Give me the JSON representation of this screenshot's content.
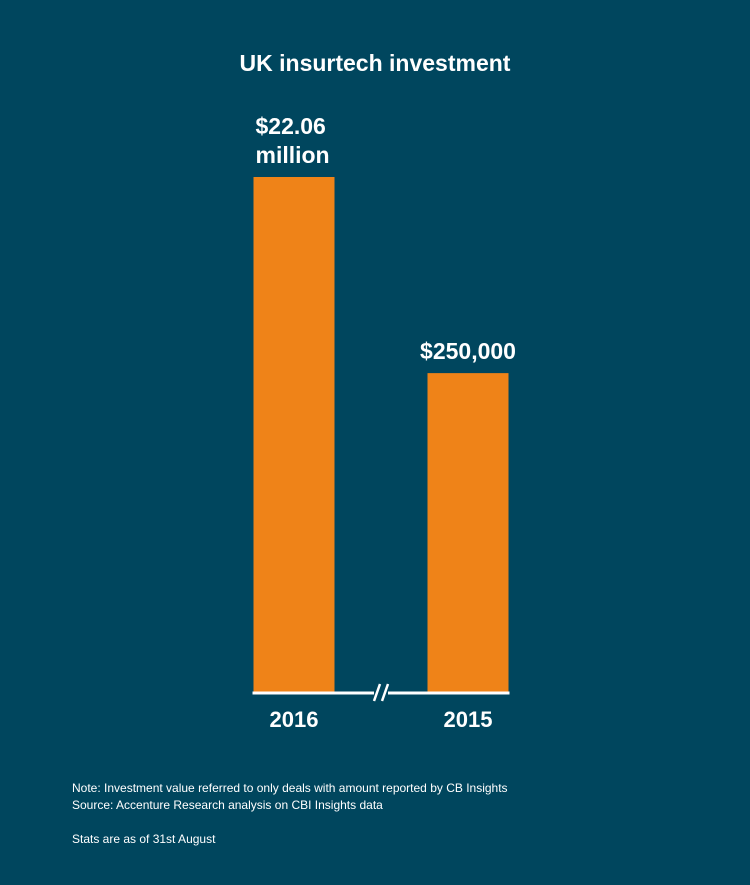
{
  "colors": {
    "background": "#00465e",
    "bar": "#ef8318",
    "axis": "#ffffff",
    "text": "#ffffff"
  },
  "chart_data": {
    "type": "bar",
    "title": "UK insurtech investment",
    "categories": [
      "2016",
      "2015"
    ],
    "values": [
      22060000,
      250000
    ],
    "value_labels": [
      [
        "$22.06",
        "million"
      ],
      [
        "$250,000"
      ]
    ],
    "axis_break": true,
    "xlabel": "",
    "ylabel": "",
    "grid": false,
    "legend": "none"
  },
  "footnotes": {
    "note": "Note: Investment value referred to only deals with amount reported by CB Insights",
    "source": "Source: Accenture Research analysis on CBI Insights data",
    "stats": "Stats are as of 31st August"
  }
}
